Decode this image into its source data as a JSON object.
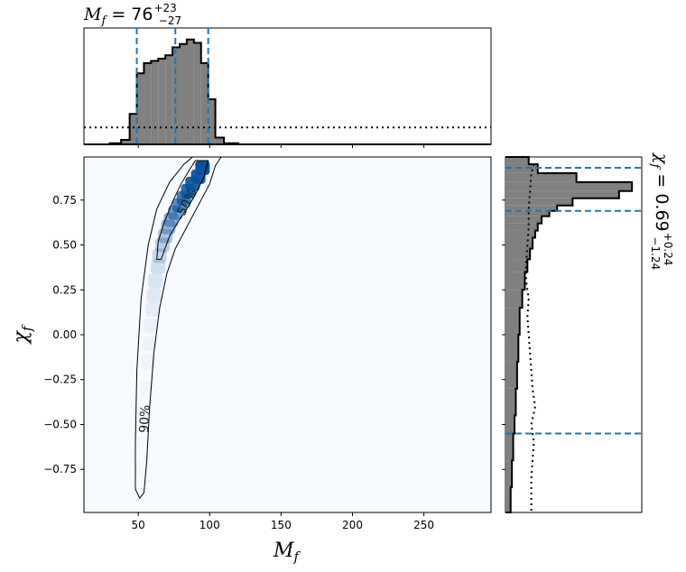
{
  "chart_data": {
    "type": "heatmap",
    "x_param": {
      "symbol": "M",
      "sub": "f",
      "min": 12,
      "max": 297,
      "median": "76",
      "upper": "+23",
      "lower": "−27",
      "ticks": [
        50,
        100,
        150,
        200,
        250
      ]
    },
    "y_param": {
      "symbol": "χ",
      "sub": "f",
      "min": -0.99,
      "max": 0.99,
      "median": "0.69",
      "upper": "+0.24",
      "lower": "−1.24",
      "ticks": [
        0.75,
        0.5,
        0.25,
        0.0,
        -0.25,
        -0.5,
        -0.75
      ]
    },
    "x_tick_labels": [
      "50",
      "100",
      "150",
      "200",
      "250"
    ],
    "y_tick_labels": [
      "0.75",
      "0.50",
      "0.25",
      "0.00",
      "−0.25",
      "−0.50",
      "−0.75"
    ],
    "x_quantile_lines": [
      49,
      76,
      99
    ],
    "y_quantile_lines": [
      0.93,
      0.69,
      -0.55
    ],
    "top_histogram": {
      "bins": [
        [
          30,
          38
        ],
        [
          38,
          44
        ],
        [
          44,
          49
        ],
        [
          49,
          54
        ],
        [
          54,
          59
        ],
        [
          59,
          64
        ],
        [
          64,
          69
        ],
        [
          69,
          74
        ],
        [
          74,
          79
        ],
        [
          79,
          84
        ],
        [
          84,
          89
        ],
        [
          89,
          94
        ],
        [
          94,
          99
        ],
        [
          99,
          104
        ],
        [
          104,
          110
        ],
        [
          110,
          120
        ]
      ],
      "density": [
        0.01,
        0.04,
        0.27,
        0.63,
        0.72,
        0.74,
        0.76,
        0.79,
        0.86,
        0.89,
        0.93,
        0.9,
        0.72,
        0.4,
        0.06,
        0.01
      ],
      "prior_level": 0.15
    },
    "right_histogram": {
      "bins": [
        0.99,
        0.95,
        0.9,
        0.85,
        0.8,
        0.76,
        0.72,
        0.69,
        0.66,
        0.62,
        0.58,
        0.54,
        0.48,
        0.42,
        0.35,
        0.25,
        0.15,
        0.0,
        -0.15,
        -0.3,
        -0.45,
        -0.55,
        -0.7,
        -0.85,
        -0.99
      ],
      "density": [
        0.18,
        0.25,
        0.55,
        0.98,
        0.88,
        0.52,
        0.4,
        0.34,
        0.28,
        0.25,
        0.23,
        0.21,
        0.19,
        0.17,
        0.15,
        0.13,
        0.11,
        0.1,
        0.09,
        0.08,
        0.07,
        0.06,
        0.05,
        0.04
      ],
      "prior": [
        [
          0.95,
          0.22
        ],
        [
          0.9,
          0.2
        ],
        [
          0.8,
          0.19
        ],
        [
          0.7,
          0.18
        ],
        [
          0.6,
          0.18
        ],
        [
          0.5,
          0.17
        ],
        [
          0.4,
          0.16
        ],
        [
          0.3,
          0.16
        ],
        [
          0.2,
          0.18
        ],
        [
          0.1,
          0.17
        ],
        [
          0.0,
          0.18
        ],
        [
          -0.1,
          0.19
        ],
        [
          -0.2,
          0.2
        ],
        [
          -0.3,
          0.21
        ],
        [
          -0.4,
          0.23
        ],
        [
          -0.5,
          0.2
        ],
        [
          -0.6,
          0.22
        ],
        [
          -0.7,
          0.21
        ],
        [
          -0.8,
          0.2
        ],
        [
          -0.99,
          0.2
        ]
      ]
    },
    "density_cells": [
      [
        95,
        0.93,
        1.0
      ],
      [
        92,
        0.88,
        0.95
      ],
      [
        88,
        0.84,
        0.9
      ],
      [
        85,
        0.8,
        0.85
      ],
      [
        82,
        0.76,
        0.75
      ],
      [
        79,
        0.72,
        0.65
      ],
      [
        76,
        0.68,
        0.55
      ],
      [
        73,
        0.64,
        0.45
      ],
      [
        71,
        0.6,
        0.38
      ],
      [
        69,
        0.55,
        0.32
      ],
      [
        67,
        0.5,
        0.26
      ],
      [
        65,
        0.44,
        0.2
      ],
      [
        64,
        0.38,
        0.16
      ],
      [
        62,
        0.3,
        0.12
      ],
      [
        61,
        0.22,
        0.1
      ],
      [
        60,
        0.14,
        0.08
      ],
      [
        59,
        0.05,
        0.06
      ],
      [
        58,
        -0.05,
        0.05
      ],
      [
        57,
        -0.15,
        0.04
      ],
      [
        56,
        -0.3,
        0.03
      ],
      [
        55,
        -0.45,
        0.03
      ],
      [
        54,
        -0.6,
        0.02
      ],
      [
        53,
        -0.75,
        0.02
      ],
      [
        52,
        -0.88,
        0.02
      ]
    ],
    "contour_90": [
      [
        108,
        0.99
      ],
      [
        104,
        0.94
      ],
      [
        100,
        0.84
      ],
      [
        92,
        0.72
      ],
      [
        84,
        0.6
      ],
      [
        76,
        0.48
      ],
      [
        70,
        0.34
      ],
      [
        65,
        0.15
      ],
      [
        61,
        -0.1
      ],
      [
        58,
        -0.4
      ],
      [
        56,
        -0.7
      ],
      [
        54,
        -0.88
      ],
      [
        51,
        -0.91
      ],
      [
        48,
        -0.86
      ],
      [
        48,
        -0.6
      ],
      [
        49,
        -0.2
      ],
      [
        52,
        0.2
      ],
      [
        57,
        0.5
      ],
      [
        63,
        0.7
      ],
      [
        72,
        0.85
      ],
      [
        82,
        0.95
      ],
      [
        88,
        0.99
      ]
    ],
    "contour_50": [
      [
        99,
        0.97
      ],
      [
        96,
        0.88
      ],
      [
        90,
        0.78
      ],
      [
        84,
        0.7
      ],
      [
        78,
        0.63
      ],
      [
        72,
        0.55
      ],
      [
        66,
        0.42
      ],
      [
        63,
        0.42
      ],
      [
        64,
        0.52
      ],
      [
        68,
        0.62
      ],
      [
        74,
        0.74
      ],
      [
        80,
        0.84
      ],
      [
        86,
        0.92
      ],
      [
        90,
        0.97
      ]
    ],
    "contour_labels": {
      "inner": "50%",
      "outer": "90%"
    }
  }
}
